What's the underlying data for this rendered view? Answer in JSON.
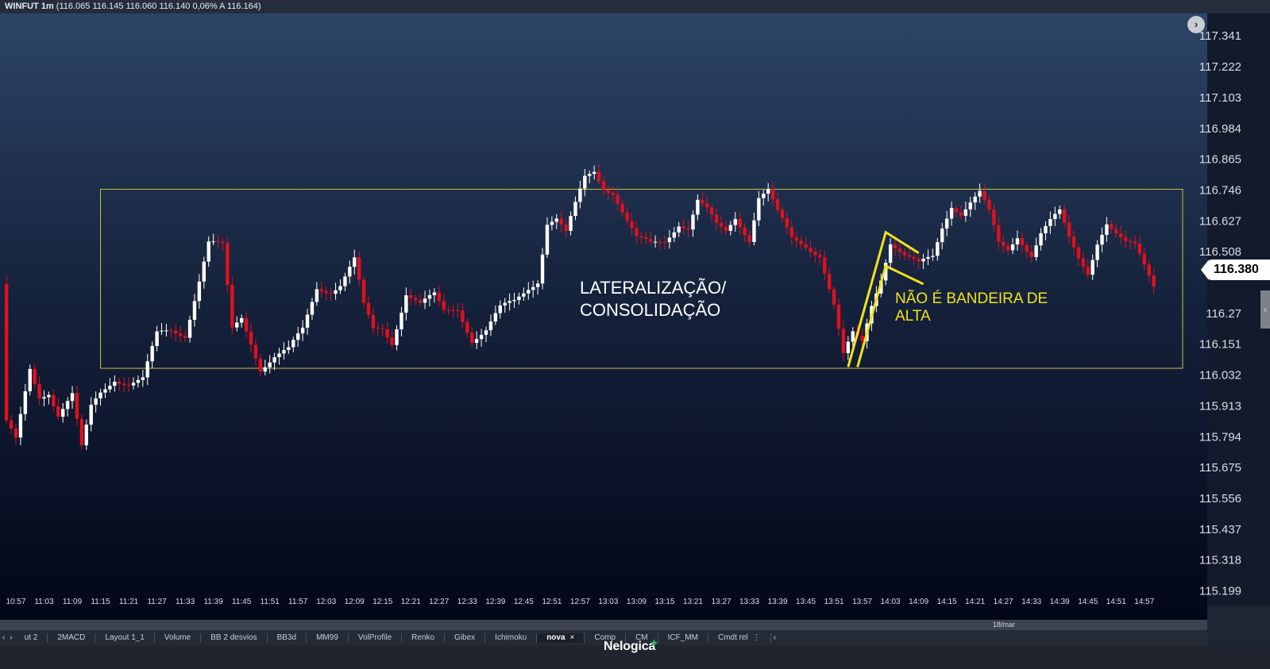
{
  "header": {
    "symbol": "WINFUT 1m",
    "quote": "(116.065  116.145  116.060  116.140  0,06%  A 116.164)"
  },
  "colors": {
    "up": "#ffffff",
    "down": "#e0101e",
    "box": "#c9c246",
    "annotation": "#f2e21c",
    "price_text": "#ffffff",
    "bg_top": "#2b4263",
    "bg_bottom": "#020719"
  },
  "chart_data": {
    "type": "candlestick",
    "y_ticks": [
      "117.341",
      "117.222",
      "117.103",
      "116.984",
      "116.865",
      "116.746",
      "116.627",
      "116.508",
      "116.27",
      "116.151",
      "116.032",
      "115.913",
      "115.794",
      "115.675",
      "115.556",
      "115.437",
      "115.318",
      "115.199"
    ],
    "x_ticks": [
      "10:57",
      "11:03",
      "11:09",
      "11:15",
      "11:21",
      "11:27",
      "11:33",
      "11:39",
      "11:45",
      "11:51",
      "11:57",
      "12:03",
      "12:09",
      "12:15",
      "12:21",
      "12:27",
      "12:33",
      "12:39",
      "12:45",
      "12:51",
      "12:57",
      "13:03",
      "13:09",
      "13:15",
      "13:21",
      "13:27",
      "13:33",
      "13:39",
      "13:45",
      "13:51",
      "13:57",
      "14:03",
      "14:09",
      "14:15",
      "14:21",
      "14:27",
      "14:33",
      "14:39",
      "14:45",
      "14:51",
      "14:57"
    ],
    "date_label": "18/mar",
    "last_price": "116.380",
    "ylim": [
      115.17,
      117.36
    ],
    "time_range": [
      "10:57",
      "15:00"
    ],
    "box": {
      "top_price": 116.746,
      "bottom_price": 116.055,
      "start_time": "11:15",
      "end_time": "15:00"
    },
    "close_path": [
      [
        "10:55",
        115.84
      ],
      [
        "10:57",
        115.77
      ],
      [
        "11:00",
        116.05
      ],
      [
        "11:02",
        115.95
      ],
      [
        "11:04",
        115.97
      ],
      [
        "11:06",
        115.88
      ],
      [
        "11:09",
        115.95
      ],
      [
        "11:11",
        115.74
      ],
      [
        "11:13",
        115.9
      ],
      [
        "11:15",
        115.96
      ],
      [
        "11:18",
        116.02
      ],
      [
        "11:21",
        116.0
      ],
      [
        "11:24",
        116.01
      ],
      [
        "11:27",
        116.18
      ],
      [
        "11:30",
        116.2
      ],
      [
        "11:33",
        116.19
      ],
      [
        "11:36",
        116.4
      ],
      [
        "11:38",
        116.54
      ],
      [
        "11:41",
        116.52
      ],
      [
        "11:43",
        116.2
      ],
      [
        "11:45",
        116.25
      ],
      [
        "11:47",
        116.16
      ],
      [
        "11:49",
        116.06
      ],
      [
        "11:52",
        116.1
      ],
      [
        "11:55",
        116.12
      ],
      [
        "11:58",
        116.2
      ],
      [
        "12:01",
        116.37
      ],
      [
        "12:04",
        116.36
      ],
      [
        "12:06",
        116.38
      ],
      [
        "12:09",
        116.47
      ],
      [
        "12:11",
        116.29
      ],
      [
        "12:13",
        116.2
      ],
      [
        "12:15",
        116.21
      ],
      [
        "12:17",
        116.16
      ],
      [
        "12:20",
        116.35
      ],
      [
        "12:23",
        116.3
      ],
      [
        "12:26",
        116.33
      ],
      [
        "12:28",
        116.27
      ],
      [
        "12:31",
        116.29
      ],
      [
        "12:34",
        116.17
      ],
      [
        "12:37",
        116.2
      ],
      [
        "12:40",
        116.28
      ],
      [
        "12:43",
        116.31
      ],
      [
        "12:46",
        116.37
      ],
      [
        "12:48",
        116.4
      ],
      [
        "12:50",
        116.62
      ],
      [
        "12:52",
        116.63
      ],
      [
        "12:54",
        116.57
      ],
      [
        "12:56",
        116.68
      ],
      [
        "12:58",
        116.79
      ],
      [
        "13:00",
        116.82
      ],
      [
        "13:02",
        116.76
      ],
      [
        "13:04",
        116.74
      ],
      [
        "13:07",
        116.62
      ],
      [
        "13:09",
        116.55
      ],
      [
        "13:12",
        116.53
      ],
      [
        "13:15",
        116.55
      ],
      [
        "13:18",
        116.62
      ],
      [
        "13:20",
        116.6
      ],
      [
        "13:22",
        116.7
      ],
      [
        "13:24",
        116.66
      ],
      [
        "13:26",
        116.6
      ],
      [
        "13:28",
        116.58
      ],
      [
        "13:30",
        116.64
      ],
      [
        "13:33",
        116.56
      ],
      [
        "13:35",
        116.72
      ],
      [
        "13:37",
        116.74
      ],
      [
        "13:39",
        116.65
      ],
      [
        "13:42",
        116.55
      ],
      [
        "13:45",
        116.53
      ],
      [
        "13:48",
        116.5
      ],
      [
        "13:51",
        116.3
      ],
      [
        "13:53",
        116.1
      ],
      [
        "13:55",
        116.18
      ],
      [
        "13:57",
        116.15
      ],
      [
        "13:59",
        116.3
      ],
      [
        "14:01",
        116.41
      ],
      [
        "14:03",
        116.55
      ],
      [
        "14:06",
        116.49
      ],
      [
        "14:09",
        116.45
      ],
      [
        "14:12",
        116.48
      ],
      [
        "14:14",
        116.6
      ],
      [
        "14:16",
        116.69
      ],
      [
        "14:18",
        116.66
      ],
      [
        "14:20",
        116.7
      ],
      [
        "14:22",
        116.73
      ],
      [
        "14:24",
        116.65
      ],
      [
        "14:26",
        116.53
      ],
      [
        "14:28",
        116.51
      ],
      [
        "14:30",
        116.57
      ],
      [
        "14:33",
        116.5
      ],
      [
        "14:35",
        116.58
      ],
      [
        "14:37",
        116.62
      ],
      [
        "14:39",
        116.65
      ],
      [
        "14:41",
        116.55
      ],
      [
        "14:43",
        116.48
      ],
      [
        "14:45",
        116.43
      ],
      [
        "14:47",
        116.55
      ],
      [
        "14:49",
        116.62
      ],
      [
        "14:51",
        116.57
      ],
      [
        "14:53",
        116.53
      ],
      [
        "14:55",
        116.52
      ],
      [
        "14:57",
        116.45
      ],
      [
        "14:59",
        116.38
      ]
    ],
    "annotations": [
      {
        "text_lines": [
          "LATERALIZAÇÃO/",
          "CONSOLIDAÇÃO"
        ]
      },
      {
        "text_lines": [
          "NÃO É BANDEIRA DE",
          "ALTA"
        ]
      }
    ]
  },
  "tabs": {
    "items": [
      "ut 2",
      "2MACD",
      "Layout 1_1",
      "Volume",
      "BB 2 desvios",
      "BB3d",
      "MM99",
      "VolProfile",
      "Renko",
      "Gibex",
      "Ichimoku",
      "nova",
      "Comp",
      "CM",
      "ICF_MM",
      "Cmdt rel"
    ],
    "active": "nova",
    "close_glyph": "×",
    "more_glyph": "⋮"
  },
  "brand": {
    "name": "Nelogica"
  },
  "icons": {
    "nav": "chevron-right-icon",
    "side": "chevron-left-icon",
    "prev": "chevron-left-icon",
    "next": "chevron-right-icon"
  }
}
